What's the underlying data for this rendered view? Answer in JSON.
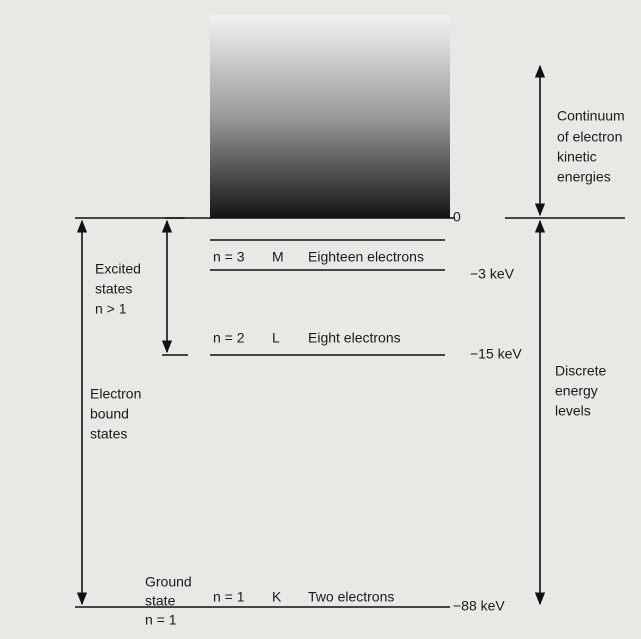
{
  "continuum_label": [
    "Continuum",
    "of electron",
    "kinetic",
    "energies"
  ],
  "zero_label": "0",
  "excited_label": [
    "Excited",
    "states",
    "n > 1"
  ],
  "bound_label": [
    "Electron",
    "bound",
    "states"
  ],
  "ground_label": [
    "Ground",
    "state",
    "n = 1"
  ],
  "discrete_label": [
    "Discrete",
    "energy",
    "levels"
  ],
  "levels": [
    {
      "n": "n = 3",
      "shell": "M",
      "electrons": "Eighteen electrons",
      "energy": "−3 keV"
    },
    {
      "n": "n = 2",
      "shell": "L",
      "electrons": "Eight electrons",
      "energy": "−15 keV"
    },
    {
      "n": "n = 1",
      "shell": "K",
      "electrons": "Two electrons",
      "energy": "−88 keV"
    }
  ]
}
